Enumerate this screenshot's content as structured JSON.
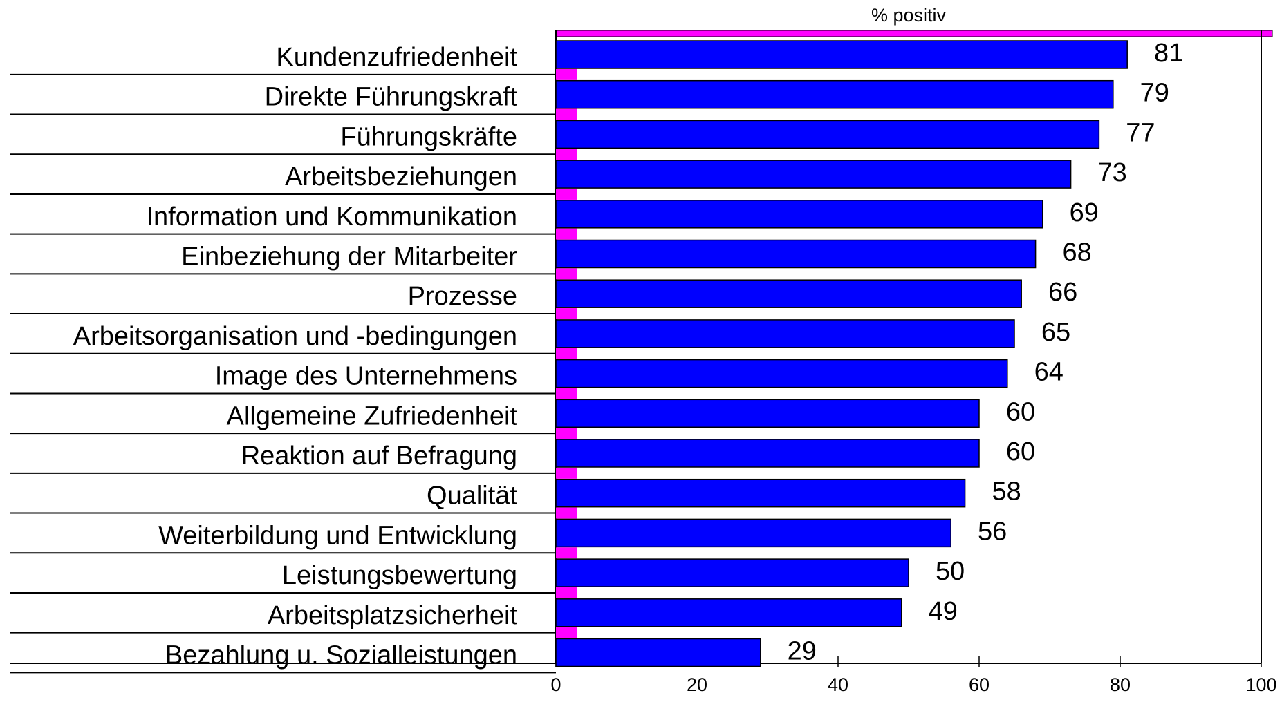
{
  "chart_data": {
    "type": "bar",
    "orientation": "horizontal",
    "axis_title": "% positiv",
    "categories": [
      "Kundenzufriedenheit",
      "Direkte Führungskraft",
      "Führungskräfte",
      "Arbeitsbeziehungen",
      "Information und Kommunikation",
      "Einbeziehung der Mitarbeiter",
      "Prozesse",
      "Arbeitsorganisation und -bedingungen",
      "Image des Unternehmens",
      "Allgemeine Zufriedenheit",
      "Reaktion auf Befragung",
      "Qualität",
      "Weiterbildung und Entwicklung",
      "Leistungsbewertung",
      "Arbeitsplatzsicherheit",
      "Bezahlung u. Sozialleistungen"
    ],
    "values": [
      81,
      79,
      77,
      73,
      69,
      68,
      66,
      65,
      64,
      60,
      60,
      58,
      56,
      50,
      49,
      29
    ],
    "color": "#0000ff",
    "accent_color": "#ff00ff",
    "xlim": [
      0,
      100
    ],
    "xticks": [
      0,
      20,
      40,
      60,
      80,
      100
    ],
    "grid": false
  }
}
